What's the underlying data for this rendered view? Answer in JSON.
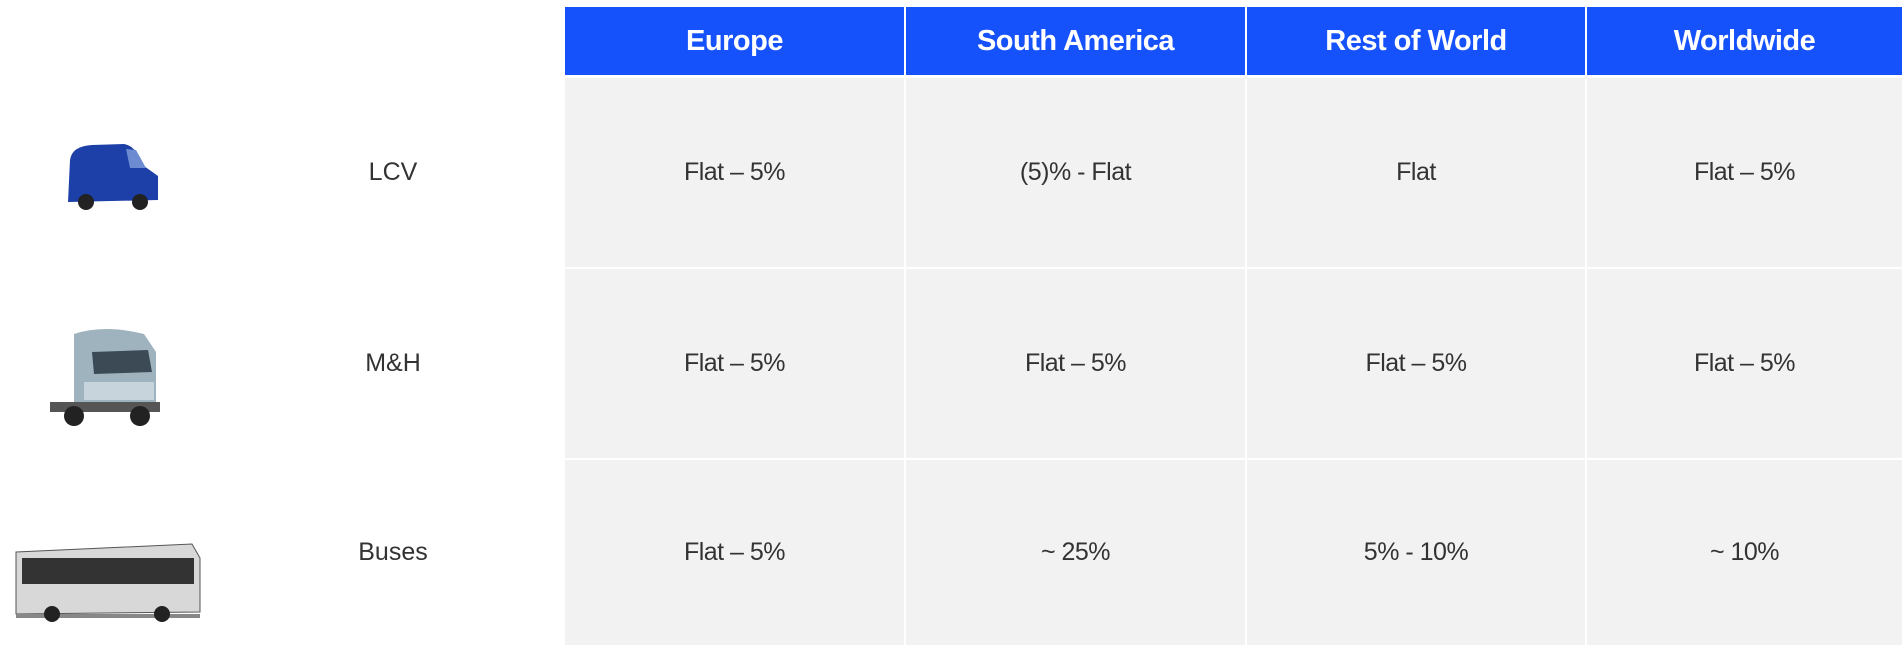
{
  "table": {
    "columns": [
      "Europe",
      "South America",
      "Rest of World",
      "Worldwide"
    ],
    "rows": [
      {
        "label": "LCV",
        "cells": [
          "Flat – 5%",
          "(5)% - Flat",
          "Flat",
          "Flat – 5%"
        ]
      },
      {
        "label": "M&H",
        "cells": [
          "Flat – 5%",
          "Flat – 5%",
          "Flat – 5%",
          "Flat – 5%"
        ]
      },
      {
        "label": "Buses",
        "cells": [
          "Flat – 5%",
          "~ 25%",
          "5% - 10%",
          "~ 10%"
        ]
      }
    ]
  }
}
